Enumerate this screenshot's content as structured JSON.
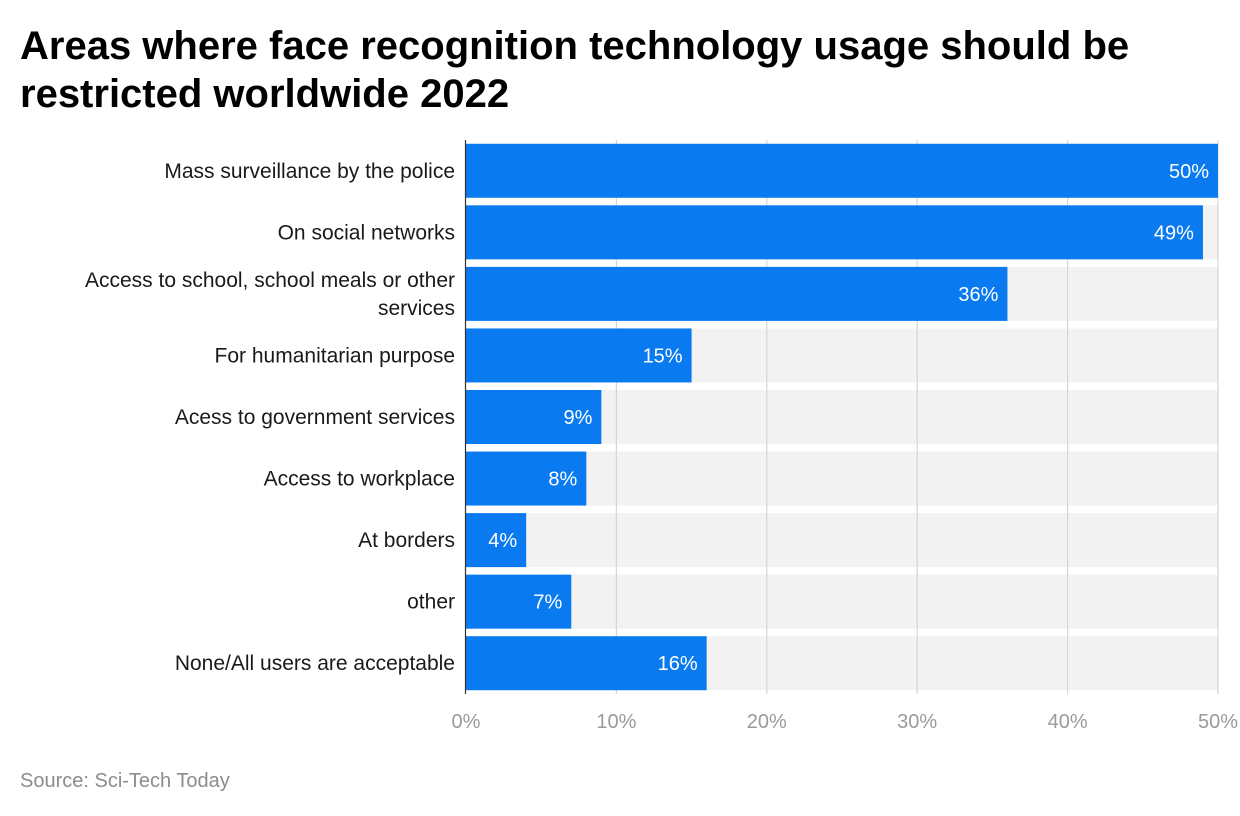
{
  "chart_data": {
    "type": "bar",
    "orientation": "horizontal",
    "title": "Areas where face recognition technology usage should be restricted worldwide 2022",
    "categories": [
      [
        "Mass surveillance by the police"
      ],
      [
        "On social networks"
      ],
      [
        "Access to school, school meals or other",
        "services"
      ],
      [
        "For humanitarian purpose"
      ],
      [
        "Acess to government services"
      ],
      [
        "Access to workplace"
      ],
      [
        "At borders"
      ],
      [
        "other"
      ],
      [
        "None/All users are acceptable"
      ]
    ],
    "values": [
      50,
      49,
      36,
      15,
      9,
      8,
      4,
      7,
      16
    ],
    "data_labels": [
      "50%",
      "49%",
      "36%",
      "15%",
      "9%",
      "8%",
      "4%",
      "7%",
      "16%"
    ],
    "xlim": [
      0,
      50
    ],
    "xticks": [
      0,
      10,
      20,
      30,
      40,
      50
    ],
    "xtick_labels": [
      "0%",
      "10%",
      "20%",
      "30%",
      "40%",
      "50%"
    ],
    "xlabel": "",
    "ylabel": "",
    "grid": true,
    "legend": "none",
    "colors": {
      "bar": "#0a7af0",
      "track": "#f2f2f2",
      "grid": "#d6d6d6",
      "axis": "#333333"
    }
  },
  "source": "Source: Sci-Tech Today"
}
